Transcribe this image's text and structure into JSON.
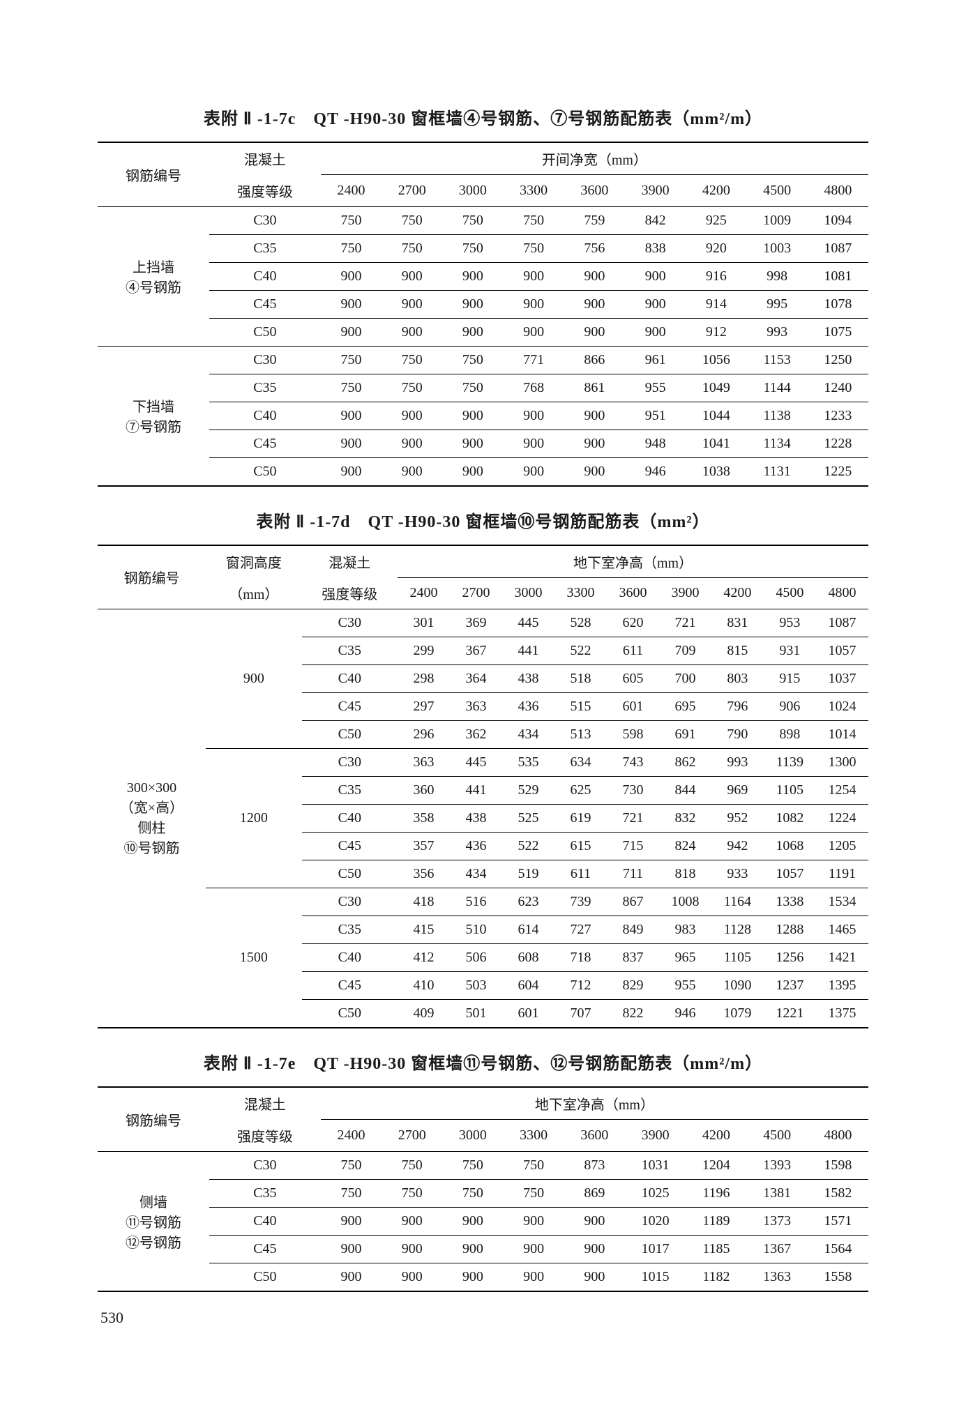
{
  "page_number": "530",
  "tables": {
    "t7c": {
      "title": "表附 Ⅱ -1-7c　QT -H90-30 窗框墙④号钢筋、⑦号钢筋配筋表（mm²/m）",
      "col1_top": "钢筋编号",
      "col2_top": "混凝土",
      "col2_bot": "强度等级",
      "span_header": "开间净宽（mm）",
      "widths": [
        "2400",
        "2700",
        "3000",
        "3300",
        "3600",
        "3900",
        "4200",
        "4500",
        "4800"
      ],
      "groups": [
        {
          "label_lines": [
            "上挡墙",
            "④号钢筋"
          ],
          "rows": [
            {
              "g": "C30",
              "v": [
                "750",
                "750",
                "750",
                "750",
                "759",
                "842",
                "925",
                "1009",
                "1094"
              ]
            },
            {
              "g": "C35",
              "v": [
                "750",
                "750",
                "750",
                "750",
                "756",
                "838",
                "920",
                "1003",
                "1087"
              ]
            },
            {
              "g": "C40",
              "v": [
                "900",
                "900",
                "900",
                "900",
                "900",
                "900",
                "916",
                "998",
                "1081"
              ]
            },
            {
              "g": "C45",
              "v": [
                "900",
                "900",
                "900",
                "900",
                "900",
                "900",
                "914",
                "995",
                "1078"
              ]
            },
            {
              "g": "C50",
              "v": [
                "900",
                "900",
                "900",
                "900",
                "900",
                "900",
                "912",
                "993",
                "1075"
              ]
            }
          ]
        },
        {
          "label_lines": [
            "下挡墙",
            "⑦号钢筋"
          ],
          "rows": [
            {
              "g": "C30",
              "v": [
                "750",
                "750",
                "750",
                "771",
                "866",
                "961",
                "1056",
                "1153",
                "1250"
              ]
            },
            {
              "g": "C35",
              "v": [
                "750",
                "750",
                "750",
                "768",
                "861",
                "955",
                "1049",
                "1144",
                "1240"
              ]
            },
            {
              "g": "C40",
              "v": [
                "900",
                "900",
                "900",
                "900",
                "900",
                "951",
                "1044",
                "1138",
                "1233"
              ]
            },
            {
              "g": "C45",
              "v": [
                "900",
                "900",
                "900",
                "900",
                "900",
                "948",
                "1041",
                "1134",
                "1228"
              ]
            },
            {
              "g": "C50",
              "v": [
                "900",
                "900",
                "900",
                "900",
                "900",
                "946",
                "1038",
                "1131",
                "1225"
              ]
            }
          ]
        }
      ]
    },
    "t7d": {
      "title": "表附 Ⅱ -1-7d　QT -H90-30 窗框墙⑩号钢筋配筋表（mm²）",
      "col1_top": "钢筋编号",
      "col2_top": "窗洞高度",
      "col2_bot": "（mm）",
      "col3_top": "混凝土",
      "col3_bot": "强度等级",
      "span_header": "地下室净高（mm）",
      "widths": [
        "2400",
        "2700",
        "3000",
        "3300",
        "3600",
        "3900",
        "4200",
        "4500",
        "4800"
      ],
      "left_label_lines": [
        "300×300",
        "（宽×高）",
        "侧柱",
        "⑩号钢筋"
      ],
      "height_groups": [
        {
          "h": "900",
          "rows": [
            {
              "g": "C30",
              "v": [
                "301",
                "369",
                "445",
                "528",
                "620",
                "721",
                "831",
                "953",
                "1087"
              ]
            },
            {
              "g": "C35",
              "v": [
                "299",
                "367",
                "441",
                "522",
                "611",
                "709",
                "815",
                "931",
                "1057"
              ]
            },
            {
              "g": "C40",
              "v": [
                "298",
                "364",
                "438",
                "518",
                "605",
                "700",
                "803",
                "915",
                "1037"
              ]
            },
            {
              "g": "C45",
              "v": [
                "297",
                "363",
                "436",
                "515",
                "601",
                "695",
                "796",
                "906",
                "1024"
              ]
            },
            {
              "g": "C50",
              "v": [
                "296",
                "362",
                "434",
                "513",
                "598",
                "691",
                "790",
                "898",
                "1014"
              ]
            }
          ]
        },
        {
          "h": "1200",
          "rows": [
            {
              "g": "C30",
              "v": [
                "363",
                "445",
                "535",
                "634",
                "743",
                "862",
                "993",
                "1139",
                "1300"
              ]
            },
            {
              "g": "C35",
              "v": [
                "360",
                "441",
                "529",
                "625",
                "730",
                "844",
                "969",
                "1105",
                "1254"
              ]
            },
            {
              "g": "C40",
              "v": [
                "358",
                "438",
                "525",
                "619",
                "721",
                "832",
                "952",
                "1082",
                "1224"
              ]
            },
            {
              "g": "C45",
              "v": [
                "357",
                "436",
                "522",
                "615",
                "715",
                "824",
                "942",
                "1068",
                "1205"
              ]
            },
            {
              "g": "C50",
              "v": [
                "356",
                "434",
                "519",
                "611",
                "711",
                "818",
                "933",
                "1057",
                "1191"
              ]
            }
          ]
        },
        {
          "h": "1500",
          "rows": [
            {
              "g": "C30",
              "v": [
                "418",
                "516",
                "623",
                "739",
                "867",
                "1008",
                "1164",
                "1338",
                "1534"
              ]
            },
            {
              "g": "C35",
              "v": [
                "415",
                "510",
                "614",
                "727",
                "849",
                "983",
                "1128",
                "1288",
                "1465"
              ]
            },
            {
              "g": "C40",
              "v": [
                "412",
                "506",
                "608",
                "718",
                "837",
                "965",
                "1105",
                "1256",
                "1421"
              ]
            },
            {
              "g": "C45",
              "v": [
                "410",
                "503",
                "604",
                "712",
                "829",
                "955",
                "1090",
                "1237",
                "1395"
              ]
            },
            {
              "g": "C50",
              "v": [
                "409",
                "501",
                "601",
                "707",
                "822",
                "946",
                "1079",
                "1221",
                "1375"
              ]
            }
          ]
        }
      ]
    },
    "t7e": {
      "title": "表附 Ⅱ -1-7e　QT -H90-30 窗框墙⑪号钢筋、⑫号钢筋配筋表（mm²/m）",
      "col1_top": "钢筋编号",
      "col2_top": "混凝土",
      "col2_bot": "强度等级",
      "span_header": "地下室净高（mm）",
      "widths": [
        "2400",
        "2700",
        "3000",
        "3300",
        "3600",
        "3900",
        "4200",
        "4500",
        "4800"
      ],
      "label_lines": [
        "侧墙",
        "⑪号钢筋",
        "⑫号钢筋"
      ],
      "rows": [
        {
          "g": "C30",
          "v": [
            "750",
            "750",
            "750",
            "750",
            "873",
            "1031",
            "1204",
            "1393",
            "1598"
          ]
        },
        {
          "g": "C35",
          "v": [
            "750",
            "750",
            "750",
            "750",
            "869",
            "1025",
            "1196",
            "1381",
            "1582"
          ]
        },
        {
          "g": "C40",
          "v": [
            "900",
            "900",
            "900",
            "900",
            "900",
            "1020",
            "1189",
            "1373",
            "1571"
          ]
        },
        {
          "g": "C45",
          "v": [
            "900",
            "900",
            "900",
            "900",
            "900",
            "1017",
            "1185",
            "1367",
            "1564"
          ]
        },
        {
          "g": "C50",
          "v": [
            "900",
            "900",
            "900",
            "900",
            "900",
            "1015",
            "1182",
            "1363",
            "1558"
          ]
        }
      ]
    }
  }
}
